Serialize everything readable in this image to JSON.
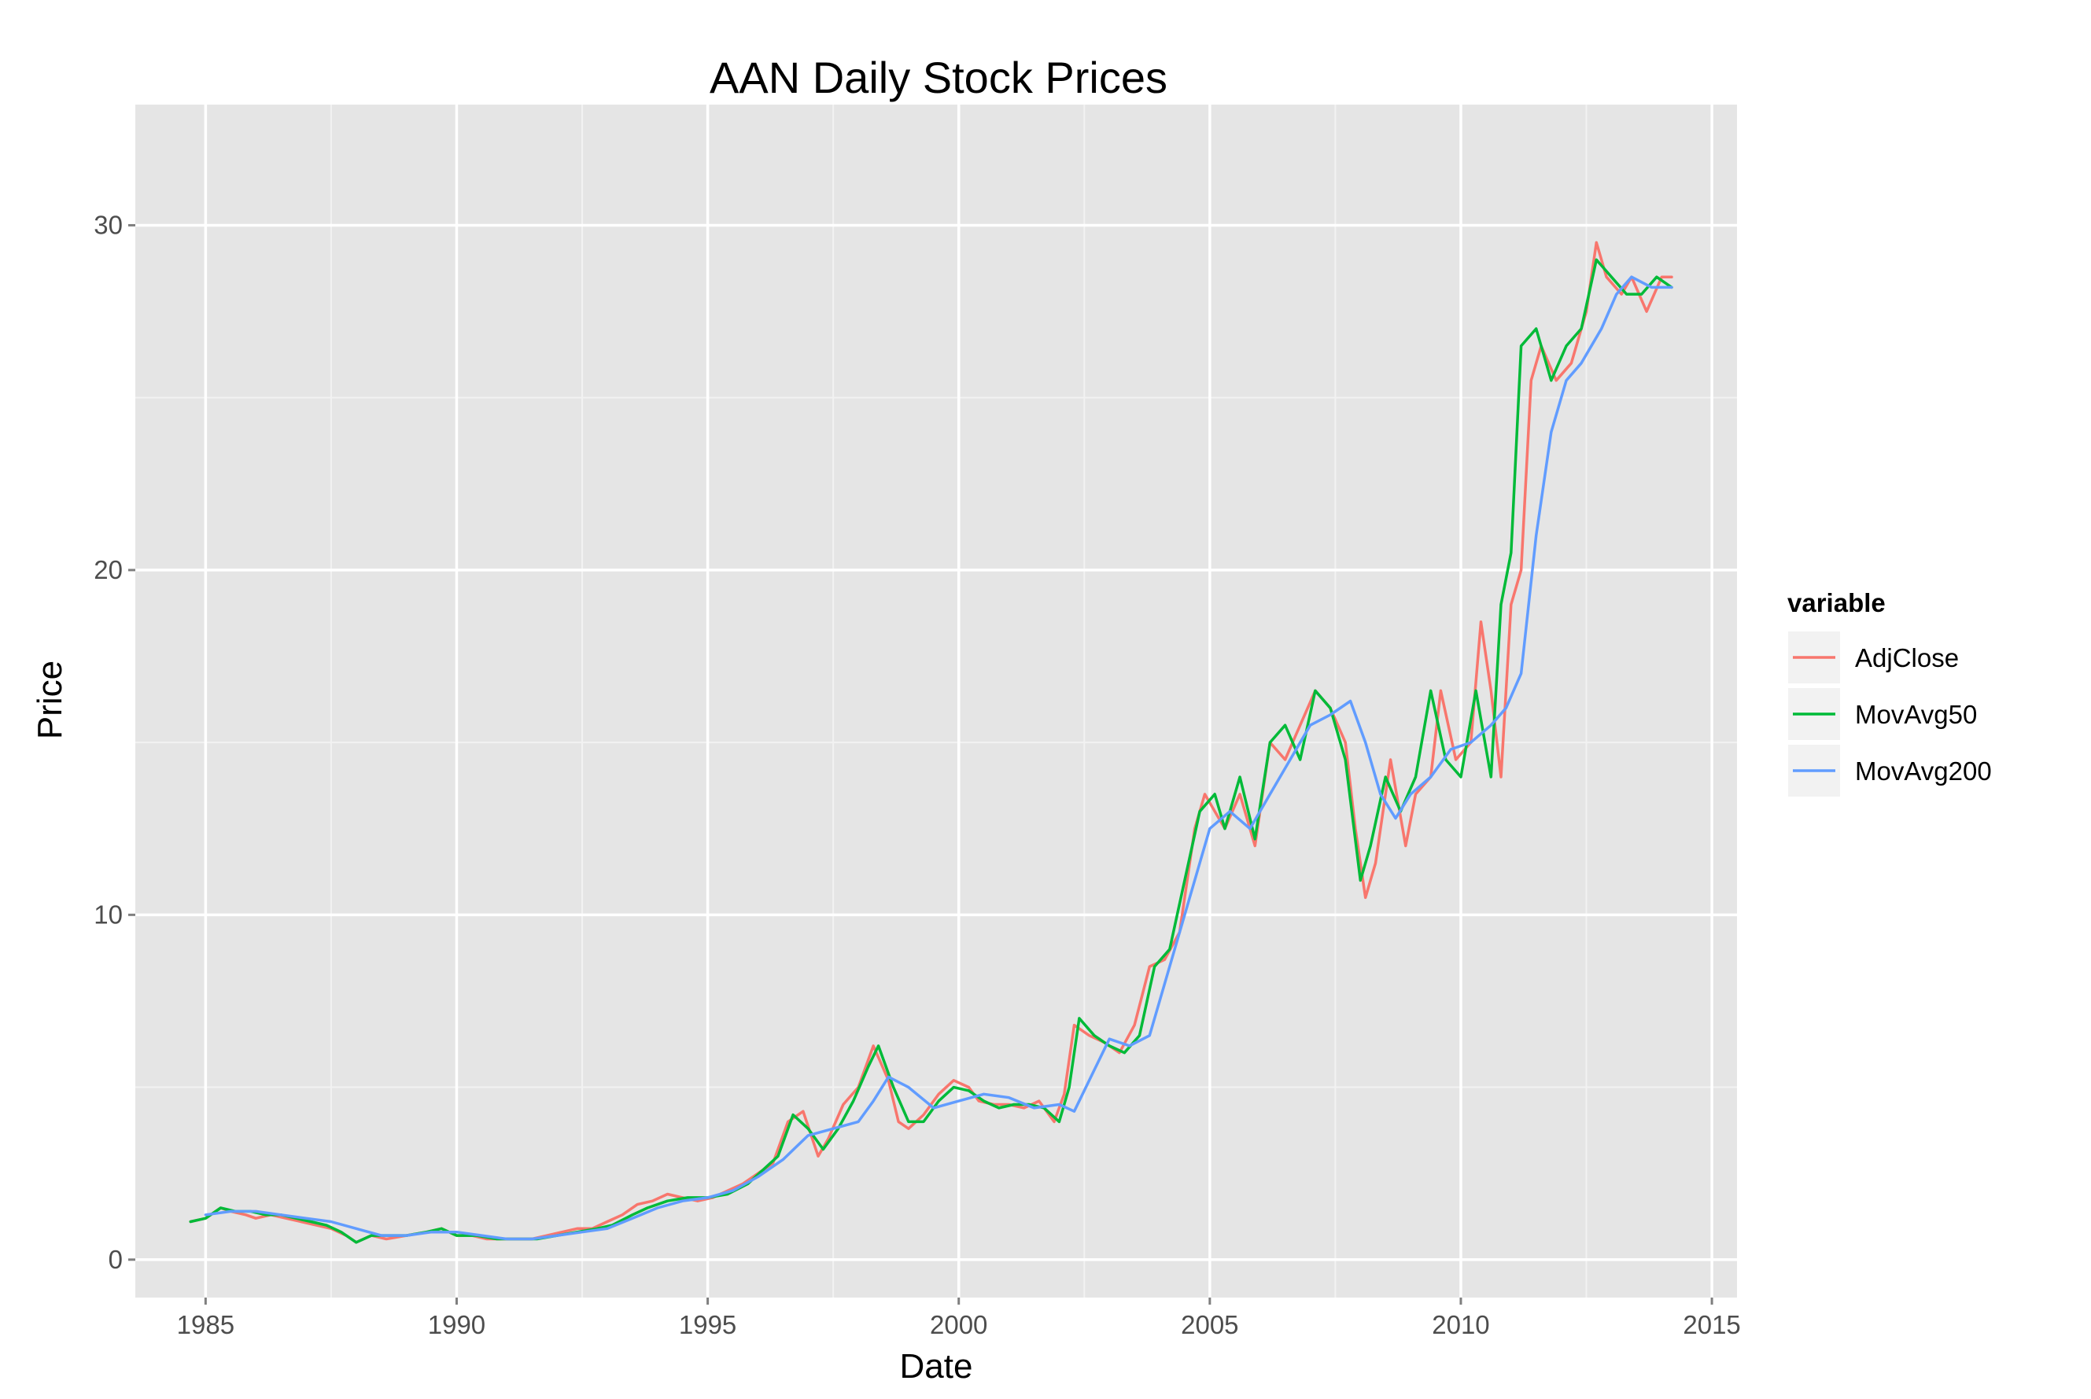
{
  "chart_data": {
    "type": "line",
    "title": "AAN Daily Stock Prices",
    "xlabel": "Date",
    "ylabel": "Price",
    "xlim": [
      1983.6,
      2015.5
    ],
    "ylim": [
      -1.1,
      33.5
    ],
    "x_ticks": [
      1985,
      1990,
      1995,
      2000,
      2005,
      2010,
      2015
    ],
    "y_ticks": [
      0,
      10,
      20,
      30
    ],
    "grid": true,
    "legend": {
      "title": "variable",
      "position": "right"
    },
    "series": [
      {
        "name": "AdjClose",
        "color": "#F8766D",
        "x": [
          1984.7,
          1985.0,
          1985.3,
          1985.5,
          1985.8,
          1986.0,
          1986.3,
          1986.6,
          1986.9,
          1987.2,
          1987.5,
          1987.8,
          1988.0,
          1988.3,
          1988.6,
          1989.0,
          1989.4,
          1989.7,
          1990.0,
          1990.3,
          1990.6,
          1990.9,
          1991.2,
          1991.5,
          1991.8,
          1992.1,
          1992.4,
          1992.7,
          1993.0,
          1993.3,
          1993.6,
          1993.9,
          1994.2,
          1994.5,
          1994.8,
          1995.1,
          1995.4,
          1995.7,
          1996.0,
          1996.3,
          1996.6,
          1996.9,
          1997.2,
          1997.4,
          1997.7,
          1998.0,
          1998.3,
          1998.6,
          1998.8,
          1999.0,
          1999.3,
          1999.6,
          1999.9,
          2000.2,
          2000.4,
          2000.7,
          2001.0,
          2001.3,
          2001.6,
          2001.9,
          2002.1,
          2002.3,
          2002.6,
          2002.9,
          2003.2,
          2003.5,
          2003.8,
          2004.1,
          2004.4,
          2004.7,
          2004.9,
          2005.1,
          2005.3,
          2005.6,
          2005.9,
          2006.2,
          2006.5,
          2006.8,
          2007.1,
          2007.4,
          2007.7,
          2007.9,
          2008.1,
          2008.3,
          2008.6,
          2008.9,
          2009.1,
          2009.4,
          2009.6,
          2009.9,
          2010.2,
          2010.4,
          2010.6,
          2010.8,
          2011.0,
          2011.2,
          2011.4,
          2011.6,
          2011.9,
          2012.2,
          2012.5,
          2012.7,
          2012.9,
          2013.2,
          2013.4,
          2013.7,
          2014.0,
          2014.2
        ],
        "y": [
          1.1,
          1.2,
          1.5,
          1.4,
          1.3,
          1.2,
          1.3,
          1.2,
          1.1,
          1.0,
          0.9,
          0.7,
          0.5,
          0.7,
          0.6,
          0.7,
          0.8,
          0.9,
          0.7,
          0.7,
          0.6,
          0.6,
          0.6,
          0.6,
          0.7,
          0.8,
          0.9,
          0.9,
          1.1,
          1.3,
          1.6,
          1.7,
          1.9,
          1.8,
          1.7,
          1.8,
          2.0,
          2.2,
          2.5,
          2.8,
          4.0,
          4.3,
          3.0,
          3.5,
          4.5,
          5.0,
          6.2,
          5.2,
          4.0,
          3.8,
          4.2,
          4.8,
          5.2,
          5.0,
          4.6,
          4.5,
          4.5,
          4.4,
          4.6,
          4.0,
          4.8,
          6.8,
          6.5,
          6.3,
          6.0,
          6.8,
          8.5,
          8.7,
          9.5,
          12.5,
          13.5,
          13.0,
          12.5,
          13.5,
          12.0,
          15.0,
          14.5,
          15.5,
          16.5,
          16.0,
          15.0,
          12.5,
          10.5,
          11.5,
          14.5,
          12.0,
          13.5,
          14.0,
          16.5,
          14.5,
          15.0,
          18.5,
          16.5,
          14.0,
          19.0,
          20.0,
          25.5,
          26.5,
          25.5,
          26.0,
          27.5,
          29.5,
          28.5,
          28.0,
          28.5,
          27.5,
          28.5,
          28.5
        ]
      },
      {
        "name": "MovAvg50",
        "color": "#00BA38",
        "x": [
          1984.7,
          1985.0,
          1985.3,
          1985.6,
          1985.9,
          1986.2,
          1986.5,
          1986.8,
          1987.1,
          1987.4,
          1987.7,
          1988.0,
          1988.3,
          1988.6,
          1989.0,
          1989.4,
          1989.7,
          1990.0,
          1990.4,
          1990.8,
          1991.2,
          1991.6,
          1992.0,
          1992.4,
          1992.8,
          1993.1,
          1993.5,
          1993.8,
          1994.2,
          1994.6,
          1995.0,
          1995.4,
          1995.8,
          1996.1,
          1996.4,
          1996.7,
          1997.0,
          1997.3,
          1997.6,
          1997.9,
          1998.2,
          1998.4,
          1998.7,
          1999.0,
          1999.3,
          1999.6,
          1999.9,
          2000.2,
          2000.5,
          2000.8,
          2001.1,
          2001.4,
          2001.7,
          2002.0,
          2002.2,
          2002.4,
          2002.7,
          2003.0,
          2003.3,
          2003.6,
          2003.9,
          2004.2,
          2004.5,
          2004.8,
          2005.1,
          2005.3,
          2005.6,
          2005.9,
          2006.2,
          2006.5,
          2006.8,
          2007.1,
          2007.4,
          2007.7,
          2008.0,
          2008.2,
          2008.5,
          2008.8,
          2009.1,
          2009.4,
          2009.7,
          2010.0,
          2010.3,
          2010.6,
          2010.8,
          2011.0,
          2011.2,
          2011.5,
          2011.8,
          2012.1,
          2012.4,
          2012.7,
          2013.0,
          2013.3,
          2013.6,
          2013.9,
          2014.2
        ],
        "y": [
          1.1,
          1.2,
          1.5,
          1.4,
          1.4,
          1.3,
          1.3,
          1.2,
          1.1,
          1.0,
          0.8,
          0.5,
          0.7,
          0.7,
          0.7,
          0.8,
          0.9,
          0.7,
          0.7,
          0.6,
          0.6,
          0.6,
          0.7,
          0.8,
          0.9,
          1.0,
          1.3,
          1.5,
          1.7,
          1.8,
          1.8,
          1.9,
          2.2,
          2.6,
          3.0,
          4.2,
          3.8,
          3.2,
          3.8,
          4.6,
          5.6,
          6.2,
          5.0,
          4.0,
          4.0,
          4.6,
          5.0,
          4.9,
          4.6,
          4.4,
          4.5,
          4.5,
          4.4,
          4.0,
          5.0,
          7.0,
          6.5,
          6.2,
          6.0,
          6.5,
          8.5,
          9.0,
          11.0,
          13.0,
          13.5,
          12.5,
          14.0,
          12.2,
          15.0,
          15.5,
          14.5,
          16.5,
          16.0,
          14.5,
          11.0,
          12.0,
          14.0,
          13.0,
          14.0,
          16.5,
          14.5,
          14.0,
          16.5,
          14.0,
          19.0,
          20.5,
          26.5,
          27.0,
          25.5,
          26.5,
          27.0,
          29.0,
          28.5,
          28.0,
          28.0,
          28.5,
          28.2
        ]
      },
      {
        "name": "MovAvg200",
        "color": "#619CFF",
        "x": [
          1985.0,
          1985.5,
          1986.0,
          1986.5,
          1987.0,
          1987.5,
          1988.0,
          1988.5,
          1989.0,
          1989.5,
          1990.0,
          1990.5,
          1991.0,
          1991.5,
          1992.0,
          1992.5,
          1993.0,
          1993.5,
          1994.0,
          1994.5,
          1995.0,
          1995.5,
          1996.0,
          1996.5,
          1997.0,
          1997.5,
          1998.0,
          1998.3,
          1998.6,
          1999.0,
          1999.5,
          2000.0,
          2000.5,
          2001.0,
          2001.5,
          2002.0,
          2002.3,
          2002.7,
          2003.0,
          2003.4,
          2003.8,
          2004.2,
          2004.6,
          2005.0,
          2005.4,
          2005.8,
          2006.2,
          2006.6,
          2007.0,
          2007.4,
          2007.8,
          2008.1,
          2008.4,
          2008.7,
          2009.0,
          2009.4,
          2009.8,
          2010.2,
          2010.6,
          2010.9,
          2011.2,
          2011.5,
          2011.8,
          2012.1,
          2012.4,
          2012.8,
          2013.1,
          2013.4,
          2013.8,
          2014.2
        ],
        "y": [
          1.3,
          1.4,
          1.4,
          1.3,
          1.2,
          1.1,
          0.9,
          0.7,
          0.7,
          0.8,
          0.8,
          0.7,
          0.6,
          0.6,
          0.7,
          0.8,
          0.9,
          1.2,
          1.5,
          1.7,
          1.8,
          2.0,
          2.4,
          2.9,
          3.6,
          3.8,
          4.0,
          4.6,
          5.3,
          5.0,
          4.4,
          4.6,
          4.8,
          4.7,
          4.4,
          4.5,
          4.3,
          5.5,
          6.4,
          6.2,
          6.5,
          8.5,
          10.5,
          12.5,
          13.0,
          12.5,
          13.5,
          14.5,
          15.5,
          15.8,
          16.2,
          15.0,
          13.5,
          12.8,
          13.5,
          14.0,
          14.8,
          15.0,
          15.5,
          16.0,
          17.0,
          21.0,
          24.0,
          25.5,
          26.0,
          27.0,
          28.0,
          28.5,
          28.2,
          28.2
        ]
      }
    ]
  }
}
